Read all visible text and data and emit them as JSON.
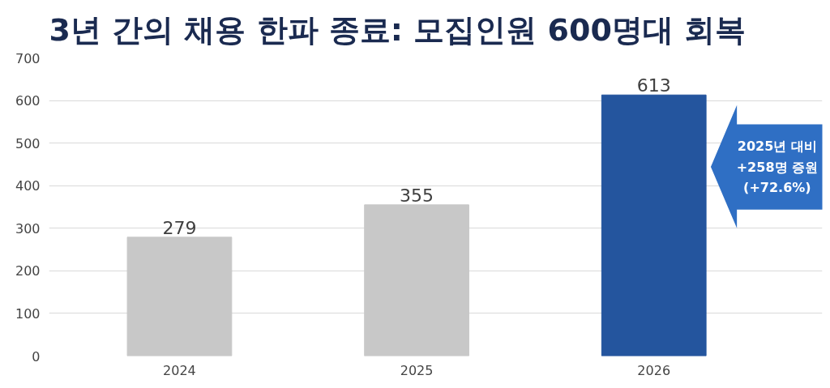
{
  "chart_data": {
    "type": "bar",
    "title": "3년 간의 채용 한파 종료: 모집인원 600명대 회복",
    "categories": [
      "2024",
      "2025",
      "2026"
    ],
    "values": [
      279,
      355,
      613
    ],
    "colors": [
      "#c8c8c8",
      "#c8c8c8",
      "#24559e"
    ],
    "ylim": [
      0,
      700
    ],
    "yticks": [
      0,
      100,
      200,
      300,
      400,
      500,
      600,
      700
    ],
    "grid": "y",
    "data_labels": true,
    "annotations": [
      "2025년 대비\n+258명 증원\n(+72.6%)"
    ]
  }
}
